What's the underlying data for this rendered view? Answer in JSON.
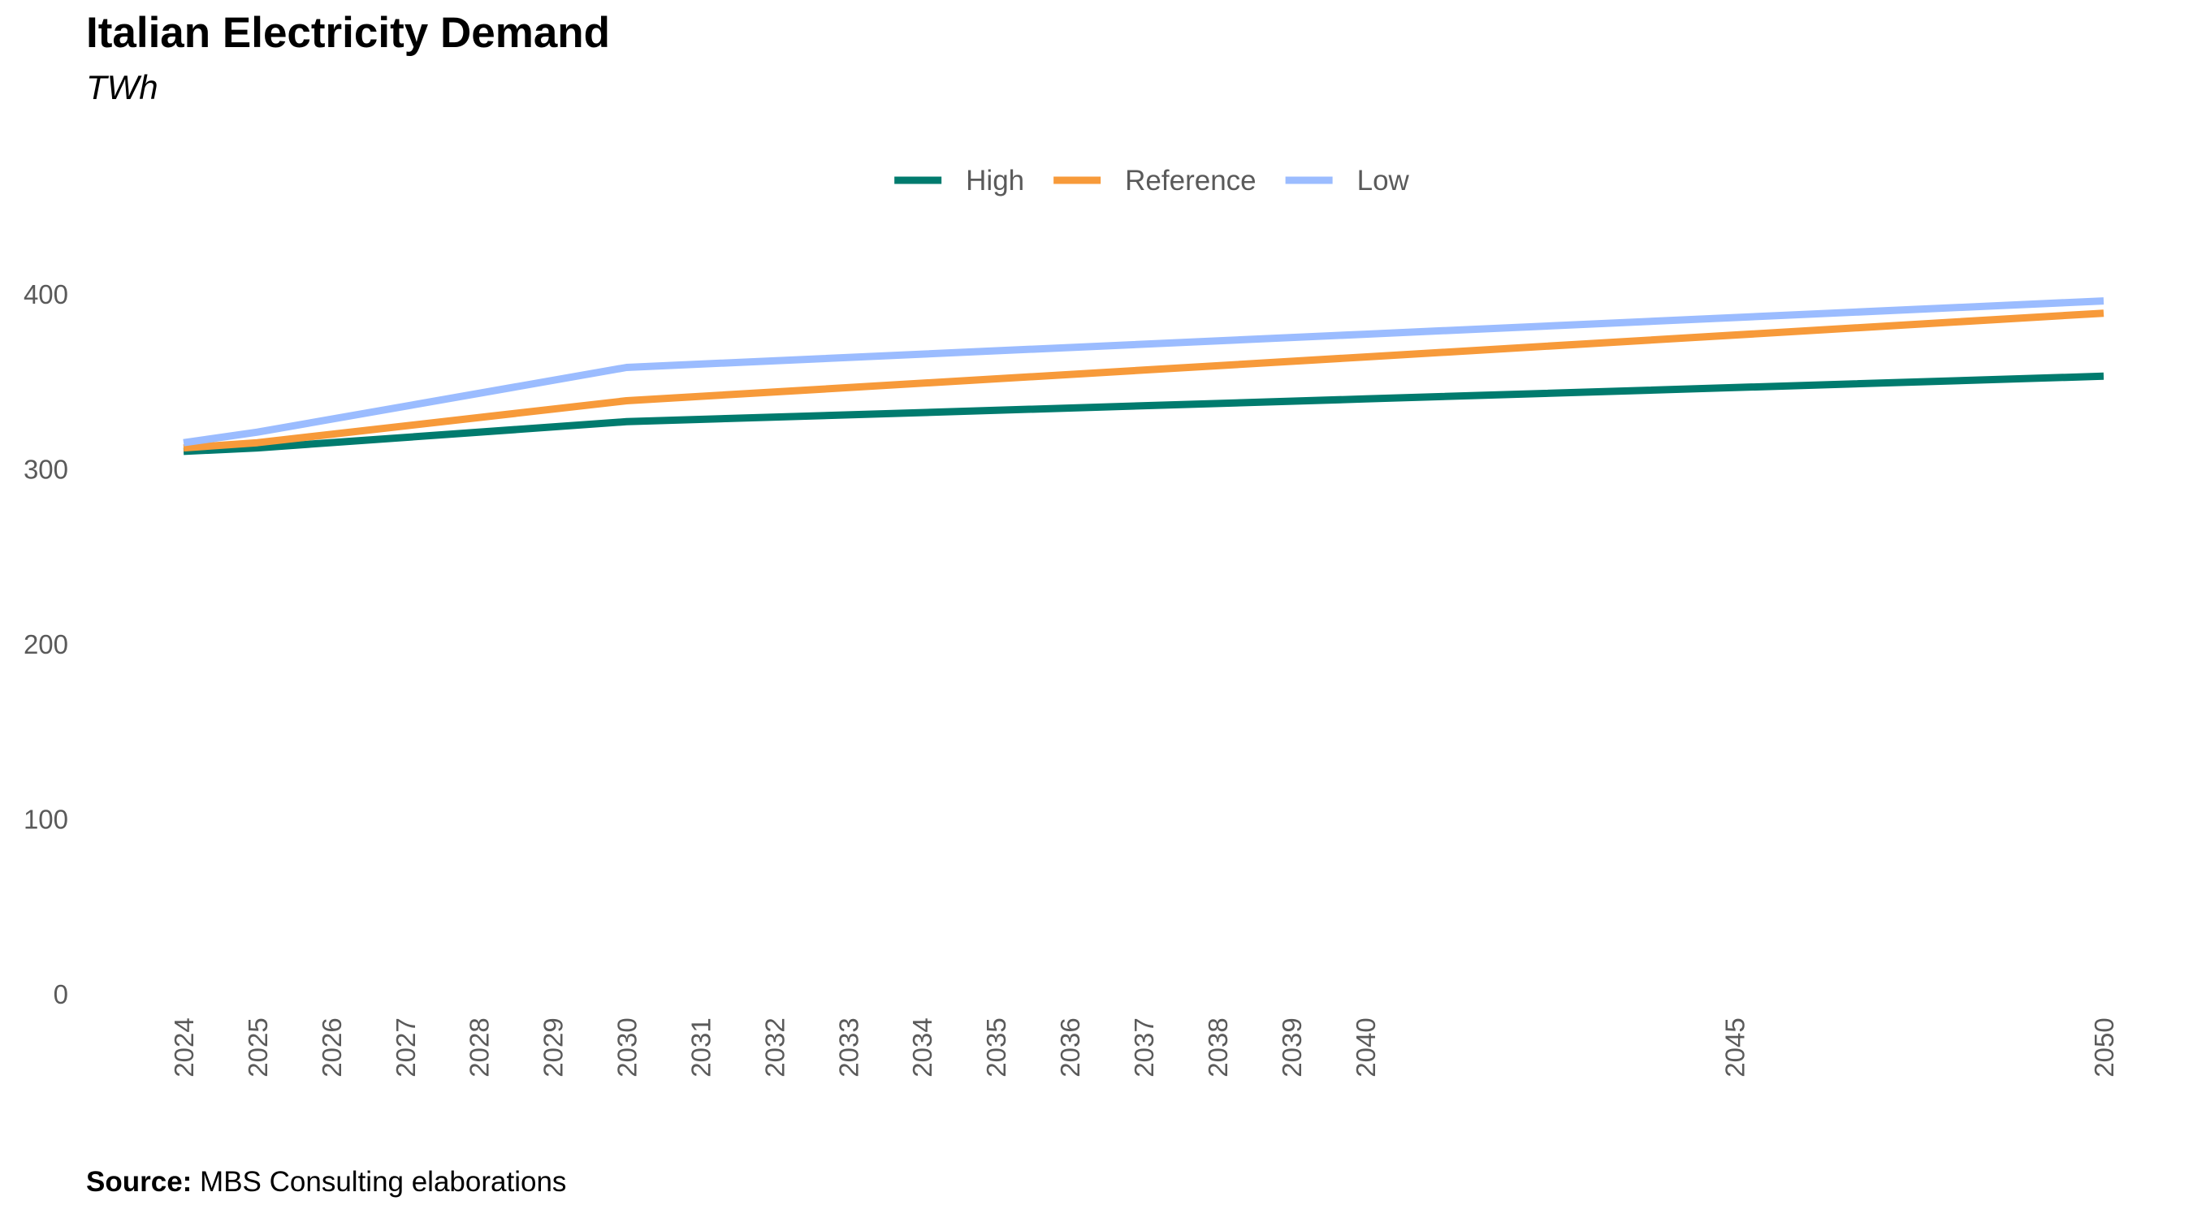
{
  "chart_data": {
    "type": "line",
    "title": "Italian Electricity Demand",
    "subtitle": "TWh",
    "xlabel": "",
    "ylabel": "",
    "x": [
      2024,
      2025,
      2030,
      2040,
      2050
    ],
    "x_ticks": [
      "2024",
      "2025",
      "2026",
      "2027",
      "2028",
      "2029",
      "2030",
      "2031",
      "2032",
      "2033",
      "2034",
      "2035",
      "2036",
      "2037",
      "2038",
      "2039",
      "2040",
      "2045",
      "2050"
    ],
    "y_ticks": [
      "0",
      "100",
      "200",
      "300",
      "400"
    ],
    "ylim": [
      0,
      400
    ],
    "xlim": [
      2024,
      2050
    ],
    "grid": false,
    "legend_position": "top-center",
    "series": [
      {
        "name": "High",
        "color": "#007b6e",
        "values": [
          310,
          312,
          327,
          340,
          353
        ]
      },
      {
        "name": "Reference",
        "color": "#f79a3a",
        "values": [
          312,
          315,
          339,
          364,
          389
        ]
      },
      {
        "name": "Low",
        "color": "#9bbcff",
        "values": [
          315,
          321,
          358,
          377,
          396
        ]
      }
    ],
    "source_label": "Source:",
    "source_text": "MBS Consulting elaborations"
  }
}
